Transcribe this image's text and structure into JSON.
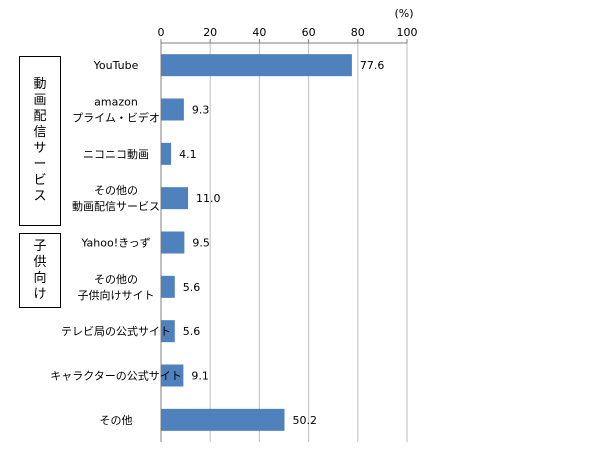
{
  "chart_data": {
    "type": "bar",
    "orientation": "horizontal",
    "unit_label": "(%)",
    "xlim": [
      0,
      100
    ],
    "x_ticks": [
      "0",
      "20",
      "40",
      "60",
      "80",
      "100"
    ],
    "grid": true,
    "bar_color": "#4f81bd",
    "categories": [
      [
        "YouTube"
      ],
      [
        "amazon",
        "プライム・ビデオ"
      ],
      [
        "ニコニコ動画"
      ],
      [
        "その他の",
        "動画配信サービス"
      ],
      [
        "Yahoo!きっず"
      ],
      [
        "その他の",
        "子供向けサイト"
      ],
      [
        "テレビ局の公式サイト"
      ],
      [
        "キャラクターの公式サイト"
      ],
      [
        "その他"
      ]
    ],
    "values": [
      77.6,
      9.3,
      4.1,
      11.0,
      9.5,
      5.6,
      5.6,
      9.1,
      50.2
    ],
    "value_labels": [
      "77.6",
      "9.3",
      "4.1",
      "11.0",
      "9.5",
      "5.6",
      "5.6",
      "9.1",
      "50.2"
    ],
    "groups": [
      {
        "label": "動画配信サービス"
      },
      {
        "label": "子供向け"
      }
    ]
  }
}
